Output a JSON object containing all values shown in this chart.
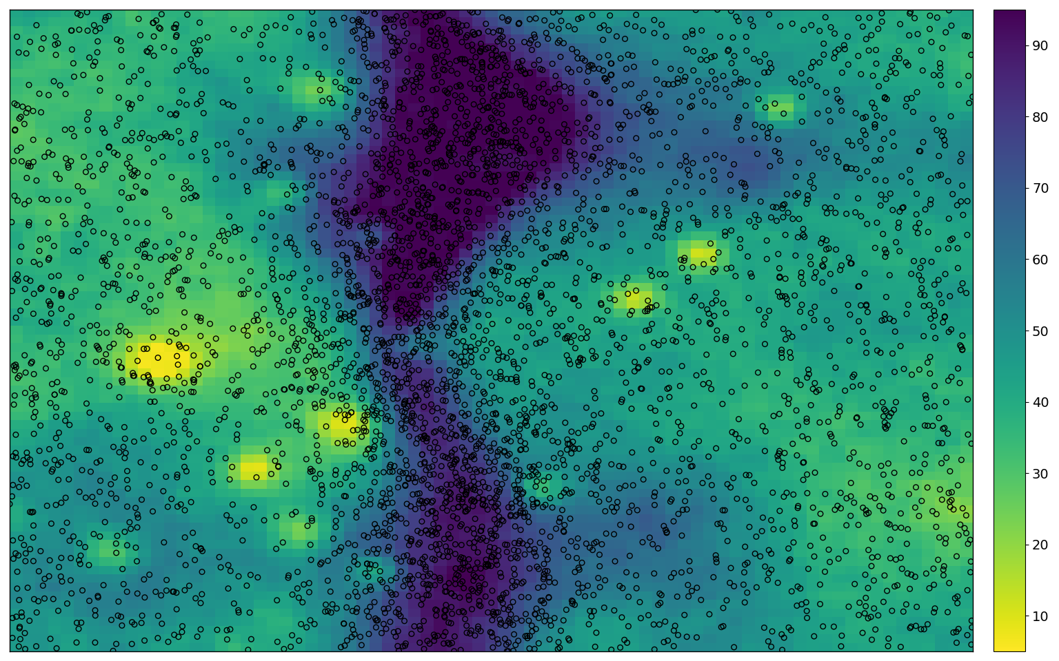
{
  "cmap": "viridis_r",
  "vmin": 5,
  "vmax": 95,
  "colorbar_ticks": [
    10,
    20,
    30,
    40,
    50,
    60,
    70,
    80,
    90
  ],
  "grid_size": 75,
  "n_points": 3500,
  "seed_map": 42,
  "seed_points": 77,
  "background_color": "#ffffff",
  "circle_color": "black",
  "circle_size": 30,
  "circle_linewidth": 1.0
}
